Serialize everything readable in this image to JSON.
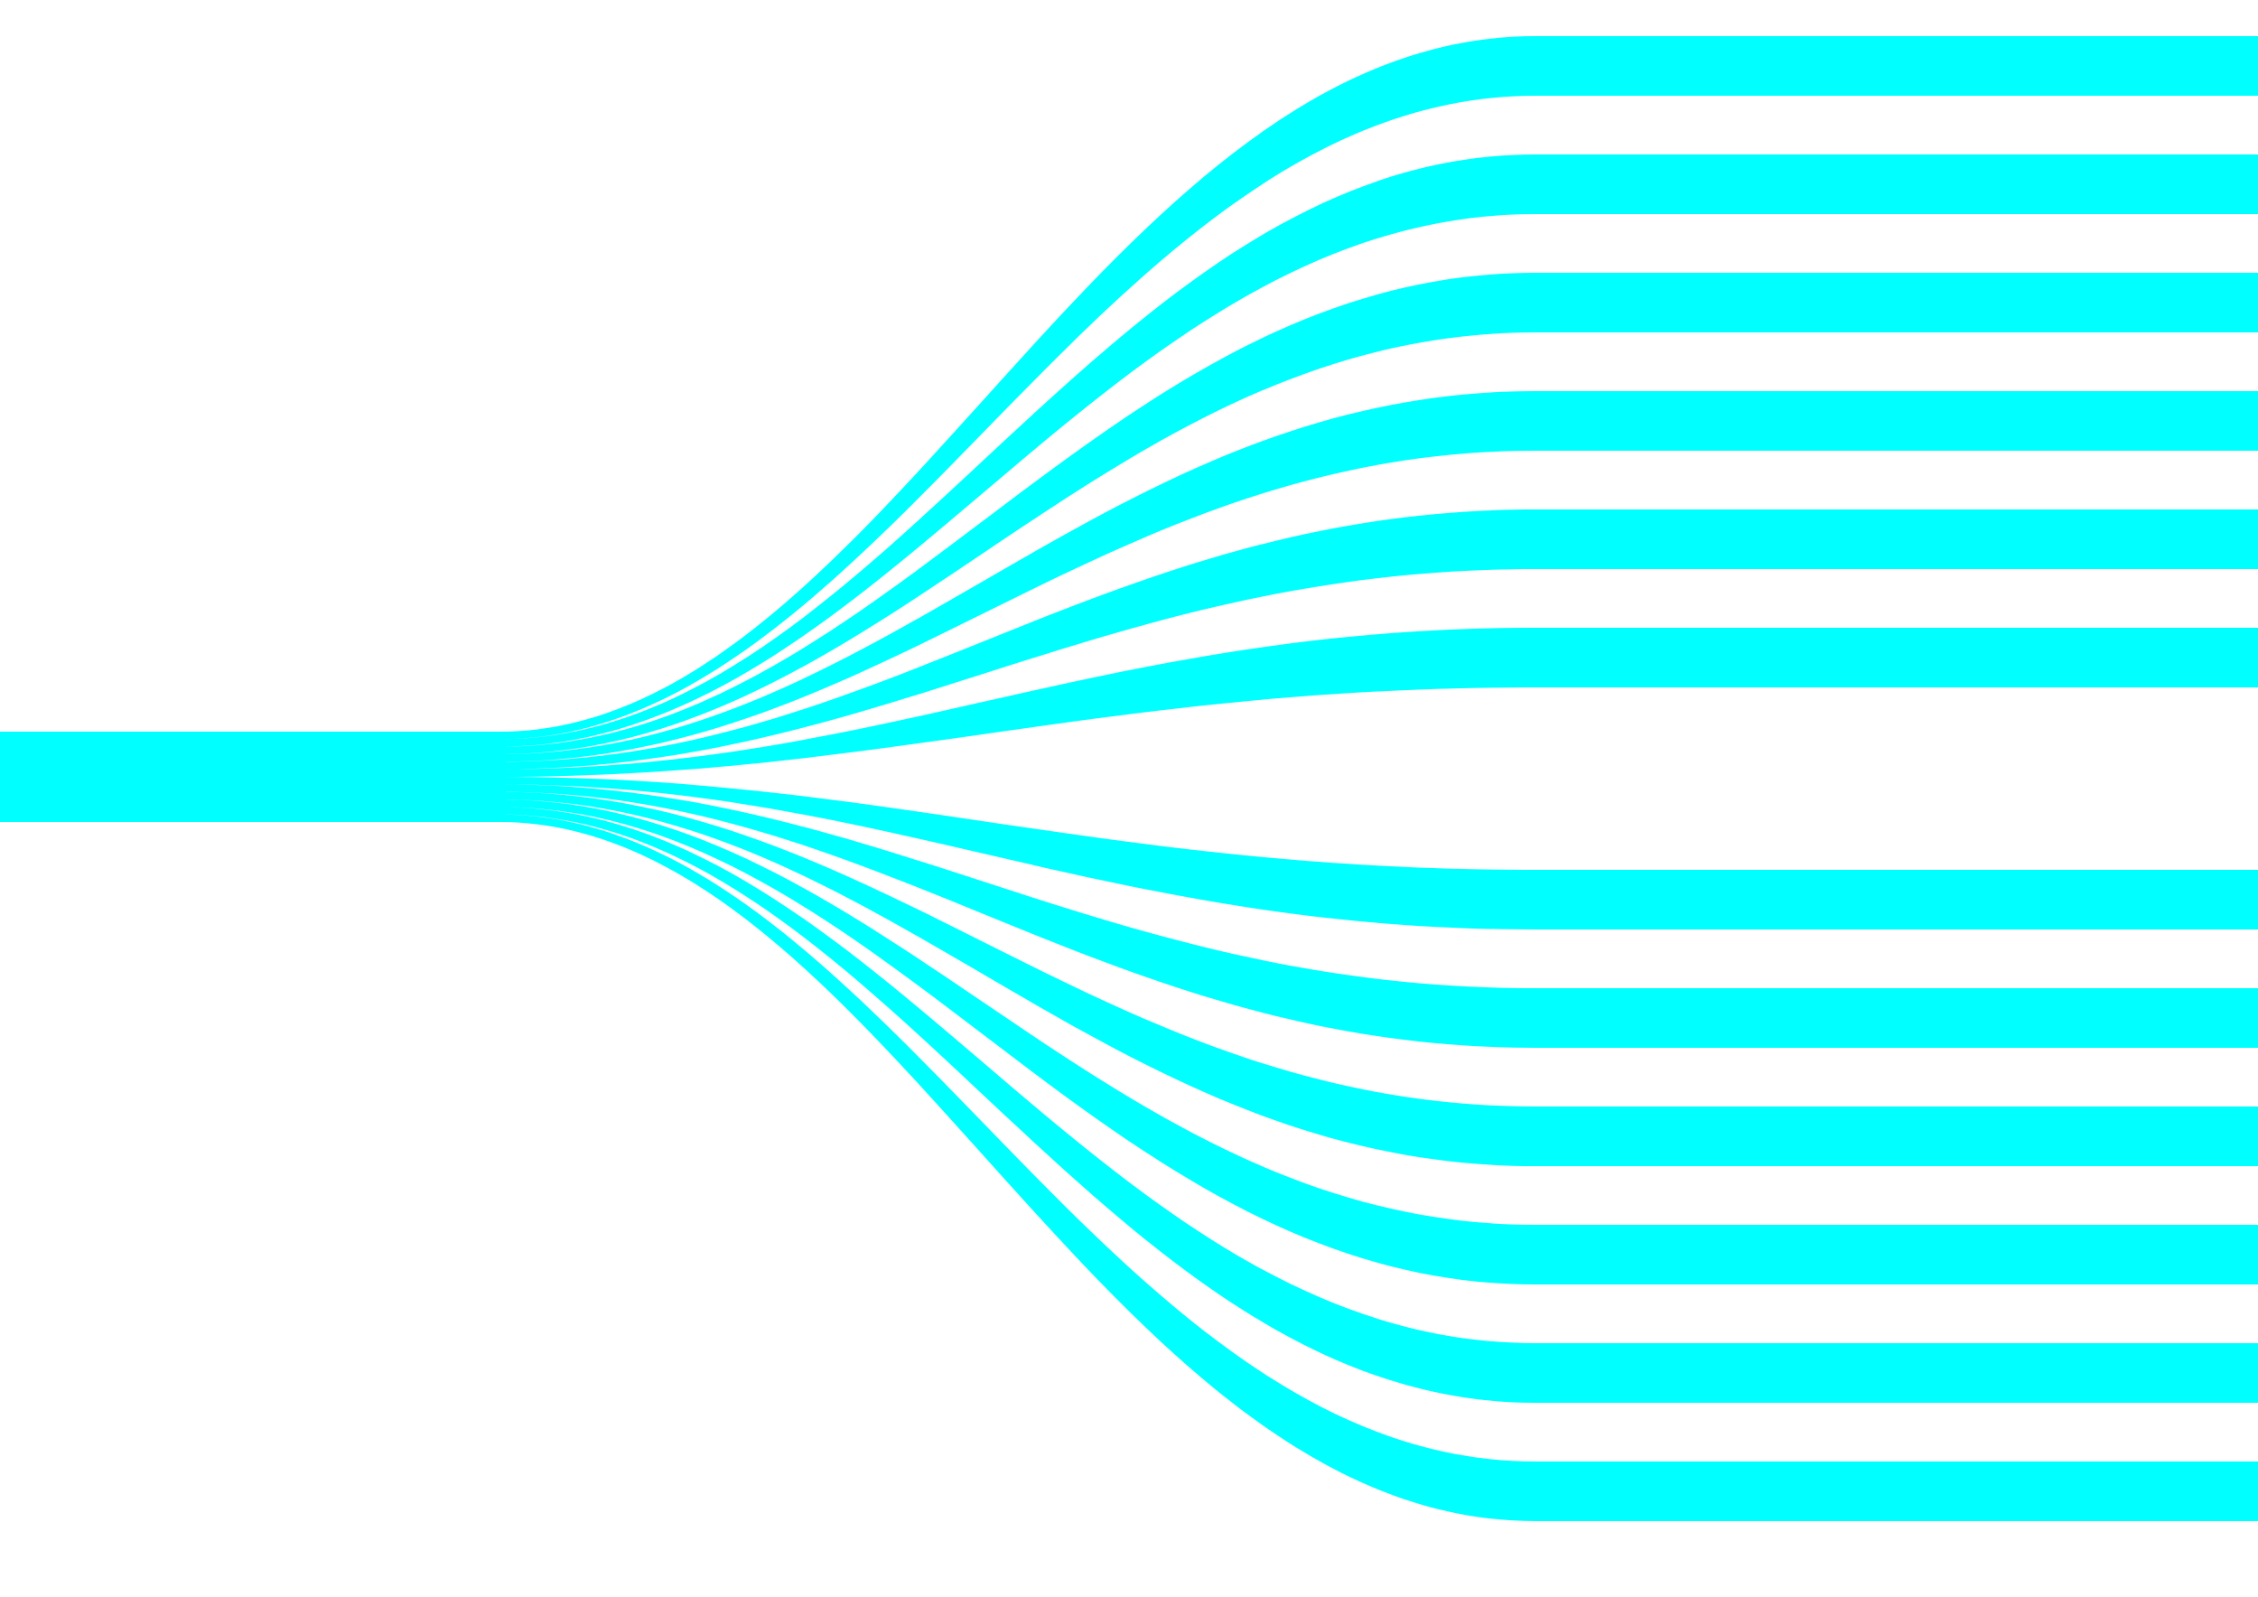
{
  "diagram": {
    "kind": "fan-out sankey",
    "direction": "left-to-right",
    "source_count": 1,
    "branch_count": 12,
    "colors": {
      "background": "#ffffff",
      "flow": "#00ffff"
    }
  }
}
